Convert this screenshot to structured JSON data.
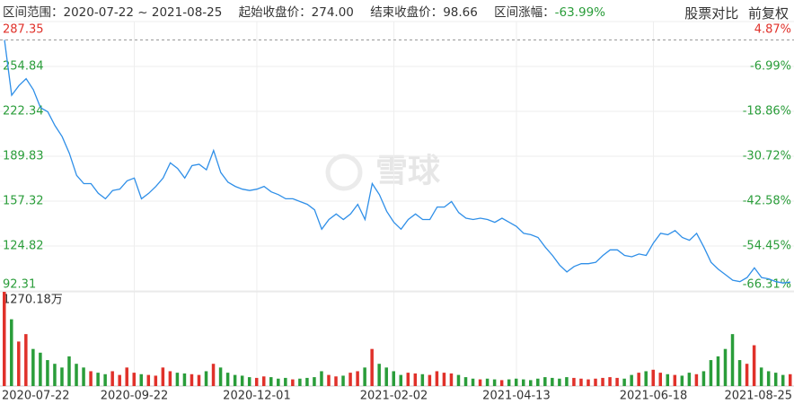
{
  "header": {
    "range_label": "区间范围：",
    "start_date": "2020-07-22",
    "separator": "~",
    "end_date": "2021-08-25",
    "start_close_label": "起始收盘价：",
    "start_close": "274.00",
    "end_close_label": "结束收盘价：",
    "end_close": "98.66",
    "change_label": "区间涨幅：",
    "change": "-63.99%"
  },
  "toolbar": [
    "股票对比",
    "前复权"
  ],
  "watermark": "雪球",
  "chart_data": {
    "type": "line",
    "color": "#2f8fe8",
    "up_color": "#e0312a",
    "down_color": "#2a9d3a",
    "baseline": 274,
    "categories": [
      "2020-07-22",
      null,
      null,
      null,
      null,
      null,
      null,
      null,
      null,
      null,
      null,
      null,
      null,
      null,
      null,
      null,
      null,
      null,
      "2020-09-22",
      null,
      null,
      null,
      null,
      null,
      null,
      null,
      null,
      null,
      null,
      null,
      null,
      null,
      null,
      null,
      null,
      "2020-12-01",
      null,
      null,
      null,
      null,
      null,
      null,
      null,
      null,
      null,
      null,
      null,
      null,
      null,
      null,
      null,
      null,
      null,
      null,
      "2021-02-02",
      null,
      null,
      null,
      null,
      null,
      null,
      null,
      null,
      null,
      null,
      null,
      null,
      null,
      null,
      null,
      null,
      "2021-04-13",
      null,
      null,
      null,
      null,
      null,
      null,
      null,
      null,
      null,
      null,
      null,
      null,
      null,
      null,
      null,
      null,
      null,
      null,
      "2021-06-18",
      null,
      null,
      null,
      null,
      null,
      null,
      null,
      null,
      null,
      null,
      null,
      null,
      null,
      null,
      null,
      null,
      null,
      null,
      "2021-08-25"
    ],
    "values": [
      274,
      234,
      241,
      246,
      238,
      225,
      222,
      212,
      204,
      192,
      176,
      170,
      170,
      163,
      159,
      165,
      166,
      172,
      174,
      159,
      163,
      168,
      174,
      185,
      181,
      174,
      183,
      184,
      180,
      194,
      178,
      171,
      168,
      166,
      165,
      166,
      168,
      164,
      162,
      159,
      159,
      157,
      155,
      151,
      137,
      144,
      148,
      144,
      148,
      155,
      144,
      170,
      162,
      150,
      142,
      137,
      144,
      148,
      144,
      144,
      153,
      153,
      157,
      149,
      145,
      144,
      145,
      144,
      142,
      145,
      142,
      139,
      134,
      133,
      131,
      124,
      118,
      111,
      106,
      110,
      112,
      112,
      113,
      118,
      122,
      122,
      118,
      117,
      119,
      118,
      127,
      134,
      133,
      136,
      131,
      129,
      134,
      124,
      113,
      108,
      104,
      100,
      99,
      102,
      109,
      102,
      101,
      99,
      98,
      98.66
    ],
    "ylim": [
      92.31,
      287.35
    ],
    "yticks": [
      287.35,
      254.84,
      222.34,
      189.83,
      157.32,
      124.82,
      92.31
    ],
    "y2lim": [
      -66.31,
      4.87
    ],
    "y2ticks": [
      {
        "value": 4.87,
        "label": "4.87%"
      },
      {
        "value": -6.99,
        "label": "-6.99%"
      },
      {
        "value": -18.86,
        "label": "-18.86%"
      },
      {
        "value": -30.72,
        "label": "-30.72%"
      },
      {
        "value": -42.58,
        "label": "-42.58%"
      },
      {
        "value": -54.45,
        "label": "-54.45%"
      },
      {
        "value": -66.31,
        "label": "-66.31%"
      }
    ],
    "grid": true,
    "volume": {
      "ylim": [
        0,
        1270.18
      ],
      "yticks": [
        {
          "value": 1270.18,
          "label": "1270.18万"
        }
      ],
      "values": [
        1270,
        900,
        600,
        700,
        500,
        450,
        350,
        300,
        250,
        400,
        300,
        250,
        200,
        180,
        160,
        200,
        150,
        250,
        180,
        160,
        150,
        140,
        250,
        200,
        180,
        170,
        160,
        150,
        200,
        300,
        250,
        180,
        150,
        140,
        120,
        110,
        130,
        120,
        100,
        110,
        90,
        100,
        110,
        120,
        200,
        150,
        130,
        140,
        180,
        200,
        250,
        500,
        300,
        250,
        200,
        150,
        180,
        170,
        160,
        150,
        200,
        180,
        170,
        150,
        120,
        100,
        90,
        100,
        90,
        80,
        90,
        100,
        90,
        80,
        100,
        120,
        110,
        100,
        120,
        110,
        100,
        90,
        100,
        110,
        120,
        110,
        100,
        150,
        180,
        200,
        220,
        180,
        160,
        150,
        140,
        180,
        160,
        200,
        350,
        400,
        500,
        700,
        350,
        300,
        550,
        250,
        200,
        180,
        150,
        160
      ]
    }
  }
}
